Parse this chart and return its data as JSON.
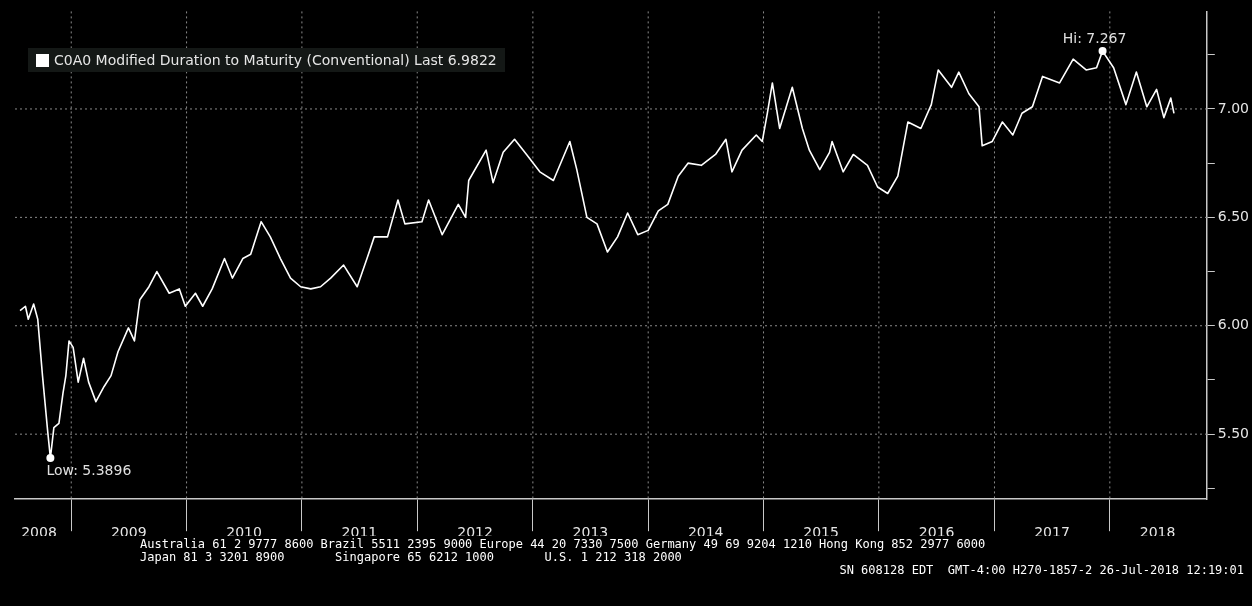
{
  "chart_data": {
    "type": "line",
    "x": [
      "2008-07-23",
      "2008-08-09",
      "2008-08-18",
      "2008-09-04",
      "2008-09-17",
      "2008-10-02",
      "2008-10-18",
      "2008-10-27",
      "2008-11-07",
      "2008-11-23",
      "2008-12-06",
      "2008-12-15",
      "2008-12-25",
      "2009-01-07",
      "2009-01-23",
      "2009-02-09",
      "2009-02-25",
      "2009-03-20",
      "2009-04-15",
      "2009-05-07",
      "2009-05-29",
      "2009-07-01",
      "2009-07-20",
      "2009-08-06",
      "2009-09-04",
      "2009-09-29",
      "2009-11-07",
      "2009-12-09",
      "2009-12-28",
      "2010-01-29",
      "2010-02-21",
      "2010-03-23",
      "2010-05-01",
      "2010-05-26",
      "2010-06-28",
      "2010-07-23",
      "2010-08-25",
      "2010-09-23",
      "2010-10-25",
      "2010-11-26",
      "2010-12-28",
      "2011-01-29",
      "2011-03-01",
      "2011-04-02",
      "2011-05-13",
      "2011-06-25",
      "2011-07-26",
      "2011-08-18",
      "2011-09-29",
      "2011-11-01",
      "2011-11-23",
      "2012-01-16",
      "2012-02-06",
      "2012-03-20",
      "2012-05-10",
      "2012-06-02",
      "2012-06-12",
      "2012-08-06",
      "2012-08-28",
      "2012-09-29",
      "2012-11-04",
      "2012-12-12",
      "2013-01-23",
      "2013-03-07",
      "2013-04-28",
      "2013-05-20",
      "2013-06-21",
      "2013-07-23",
      "2013-08-25",
      "2013-09-26",
      "2013-10-28",
      "2013-11-29",
      "2014-01-01",
      "2014-02-02",
      "2014-03-04",
      "2014-04-06",
      "2014-05-07",
      "2014-06-18",
      "2014-08-02",
      "2014-09-04",
      "2014-09-23",
      "2014-10-25",
      "2014-12-09",
      "2014-12-28",
      "2015-01-13",
      "2015-01-29",
      "2015-02-21",
      "2015-04-02",
      "2015-05-04",
      "2015-05-26",
      "2015-06-28",
      "2015-07-29",
      "2015-08-06",
      "2015-09-10",
      "2015-10-12",
      "2015-11-26",
      "2015-12-28",
      "2016-01-29",
      "2016-03-01",
      "2016-04-02",
      "2016-05-13",
      "2016-06-15",
      "2016-07-07",
      "2016-08-18",
      "2016-09-10",
      "2016-10-12",
      "2016-11-13",
      "2016-11-23",
      "2016-12-25",
      "2017-01-26",
      "2017-02-28",
      "2017-03-29",
      "2017-05-01",
      "2017-06-02",
      "2017-07-26",
      "2017-09-07",
      "2017-10-18",
      "2017-11-20",
      "2017-12-09",
      "2018-01-13",
      "2018-02-21",
      "2018-03-26",
      "2018-04-28",
      "2018-05-29",
      "2018-06-21",
      "2018-07-13",
      "2018-07-23"
    ],
    "series": [
      {
        "name": "C0A0 Modified Duration to Maturity (Conventional) Last 6.9822",
        "color": "#ffffff",
        "values": [
          6.07,
          6.09,
          6.03,
          6.1,
          6.03,
          5.77,
          5.52,
          5.3896,
          5.53,
          5.55,
          5.69,
          5.77,
          5.93,
          5.9,
          5.74,
          5.85,
          5.74,
          5.65,
          5.72,
          5.77,
          5.88,
          5.99,
          5.93,
          6.12,
          6.18,
          6.25,
          6.15,
          6.17,
          6.09,
          6.15,
          6.09,
          6.17,
          6.31,
          6.22,
          6.31,
          6.33,
          6.48,
          6.41,
          6.31,
          6.22,
          6.18,
          6.17,
          6.18,
          6.22,
          6.28,
          6.18,
          6.31,
          6.41,
          6.41,
          6.58,
          6.47,
          6.48,
          6.58,
          6.42,
          6.56,
          6.5,
          6.67,
          6.81,
          6.66,
          6.8,
          6.86,
          6.79,
          6.71,
          6.67,
          6.85,
          6.72,
          6.5,
          6.47,
          6.34,
          6.41,
          6.52,
          6.42,
          6.44,
          6.53,
          6.56,
          6.69,
          6.75,
          6.74,
          6.79,
          6.86,
          6.71,
          6.81,
          6.88,
          6.85,
          6.98,
          7.12,
          6.91,
          7.1,
          6.91,
          6.81,
          6.72,
          6.8,
          6.85,
          6.71,
          6.79,
          6.74,
          6.64,
          6.61,
          6.69,
          6.94,
          6.91,
          7.02,
          7.18,
          7.1,
          7.17,
          7.07,
          7.01,
          6.83,
          6.85,
          6.94,
          6.88,
          6.98,
          7.01,
          7.15,
          7.12,
          7.23,
          7.18,
          7.19,
          7.267,
          7.19,
          7.02,
          7.17,
          7.01,
          7.09,
          6.96,
          7.05,
          6.98
        ]
      }
    ],
    "xlim": [
      "2008-07-07",
      "2018-11-04"
    ],
    "xticks": [
      {
        "value": "2008-09-21",
        "label": "2008"
      },
      {
        "value": "2009-01-01",
        "label": null
      },
      {
        "value": "2009-07-02",
        "label": "2009"
      },
      {
        "value": "2010-01-01",
        "label": null
      },
      {
        "value": "2010-07-02",
        "label": "2010"
      },
      {
        "value": "2011-01-01",
        "label": null
      },
      {
        "value": "2011-07-02",
        "label": "2011"
      },
      {
        "value": "2012-01-01",
        "label": null
      },
      {
        "value": "2012-07-02",
        "label": "2012"
      },
      {
        "value": "2013-01-01",
        "label": null
      },
      {
        "value": "2013-07-02",
        "label": "2013"
      },
      {
        "value": "2014-01-01",
        "label": null
      },
      {
        "value": "2014-07-02",
        "label": "2014"
      },
      {
        "value": "2015-01-01",
        "label": null
      },
      {
        "value": "2015-07-02",
        "label": "2015"
      },
      {
        "value": "2016-01-01",
        "label": null
      },
      {
        "value": "2016-07-02",
        "label": "2016"
      },
      {
        "value": "2017-01-01",
        "label": null
      },
      {
        "value": "2017-07-02",
        "label": "2017"
      },
      {
        "value": "2018-01-01",
        "label": null
      },
      {
        "value": "2018-06-01",
        "label": "2018"
      }
    ],
    "ylim": [
      5.2,
      7.45
    ],
    "yticks": [
      {
        "value": 5.25,
        "label": null
      },
      {
        "value": 5.5,
        "label": "5.50"
      },
      {
        "value": 5.75,
        "label": null
      },
      {
        "value": 6,
        "label": "6.00"
      },
      {
        "value": 6.25,
        "label": null
      },
      {
        "value": 6.5,
        "label": "6.50"
      },
      {
        "value": 6.75,
        "label": null
      },
      {
        "value": 7,
        "label": "7.00"
      },
      {
        "value": 7.25,
        "label": null
      }
    ],
    "grid": true,
    "legend": "top left",
    "marker": "none",
    "line_style": "solid",
    "annotations": [
      {
        "text": "Hi: 7.267",
        "x": "2017-12-09",
        "y": 7.267
      },
      {
        "text": "Low: 5.3896",
        "x": "2008-10-27",
        "y": 5.3896
      },
      "Australia 61 2 9777 8600 Brazil 5511 2395 9000 Europe 44 20 7330 7500 Germany 49 69 9204 1210 Hong Kong 852 2977 6000",
      "Japan 81 3 3201 8900       Singapore 65 6212 1000       U.S. 1 212 318 2000",
      "SN 608128 EDT  GMT-4:00 H270-1857-2 26-Jul-2018 12:19:01"
    ]
  }
}
